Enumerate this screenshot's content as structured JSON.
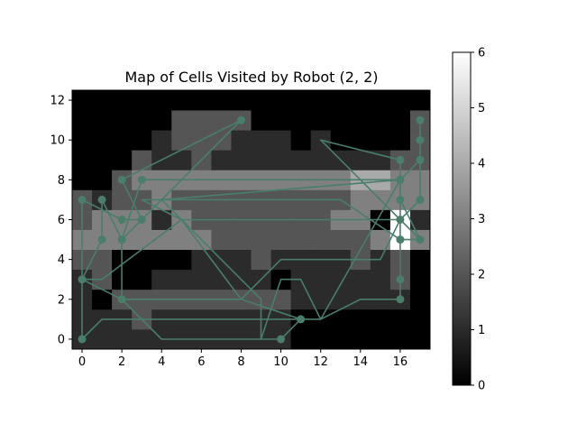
{
  "chart_data": {
    "type": "heatmap",
    "title": "Map of Cells Visited by Robot (2, 2)",
    "xlabel": "",
    "ylabel": "",
    "grid": false,
    "colormap": "gray",
    "xlim": [
      -0.5,
      17.5
    ],
    "ylim": [
      -0.5,
      12.5
    ],
    "x_ticks": [
      0,
      2,
      4,
      6,
      8,
      10,
      12,
      14,
      16
    ],
    "y_ticks": [
      0,
      2,
      4,
      6,
      8,
      10,
      12
    ],
    "colorbar": {
      "min": 0,
      "max": 6,
      "ticks": [
        0,
        1,
        2,
        3,
        4,
        5,
        6
      ]
    },
    "grid_values": [
      [
        1,
        1,
        1,
        1,
        1,
        1,
        1,
        1,
        1,
        1,
        1,
        0,
        0,
        0,
        0,
        0,
        0,
        0
      ],
      [
        1,
        1,
        1,
        2,
        1,
        1,
        1,
        1,
        1,
        1,
        1,
        0,
        0,
        0,
        0,
        0,
        0,
        0
      ],
      [
        1,
        0,
        2,
        2,
        2,
        2,
        2,
        2,
        2,
        2,
        2,
        1,
        1,
        1,
        1,
        1,
        1,
        0
      ],
      [
        1,
        2,
        0,
        0,
        1,
        1,
        1,
        1,
        1,
        1,
        0,
        1,
        1,
        1,
        1,
        1,
        2,
        0
      ],
      [
        2,
        2,
        0,
        0,
        0,
        0,
        1,
        1,
        1,
        2,
        1,
        1,
        1,
        1,
        2,
        1,
        2,
        0
      ],
      [
        3,
        3,
        3,
        3,
        3,
        3,
        3,
        2,
        2,
        2,
        2,
        2,
        2,
        2,
        2,
        3,
        6,
        3
      ],
      [
        2,
        3,
        3,
        3,
        1,
        3,
        2,
        2,
        2,
        2,
        2,
        2,
        2,
        3,
        3,
        0,
        6,
        1
      ],
      [
        2,
        1,
        2,
        2,
        3,
        2,
        2,
        2,
        2,
        2,
        2,
        2,
        2,
        2,
        3,
        3,
        3,
        3
      ],
      [
        0,
        0,
        2,
        3,
        3,
        3,
        3,
        3,
        3,
        3,
        3,
        3,
        3,
        3,
        4,
        4,
        3,
        3
      ],
      [
        0,
        0,
        0,
        2,
        1,
        1,
        2,
        1,
        1,
        1,
        1,
        1,
        1,
        1,
        1,
        1,
        2,
        2
      ],
      [
        0,
        0,
        0,
        0,
        1,
        2,
        2,
        2,
        1,
        1,
        1,
        0,
        1,
        0,
        0,
        0,
        0,
        2
      ],
      [
        0,
        0,
        0,
        0,
        0,
        2,
        2,
        2,
        2,
        0,
        0,
        0,
        0,
        0,
        0,
        0,
        0,
        2
      ],
      [
        0,
        0,
        0,
        0,
        0,
        0,
        0,
        0,
        0,
        0,
        0,
        0,
        0,
        0,
        0,
        0,
        0,
        0
      ]
    ],
    "path_color": "#4a7d6a",
    "path": [
      [
        0,
        0
      ],
      [
        0,
        3
      ],
      [
        1,
        5
      ],
      [
        1,
        7
      ],
      [
        2,
        5
      ],
      [
        3,
        6
      ],
      [
        2,
        8
      ],
      [
        8,
        11
      ],
      [
        3,
        6
      ],
      [
        2,
        6
      ],
      [
        0,
        7
      ],
      [
        0,
        3
      ],
      [
        2,
        2
      ],
      [
        8,
        2
      ],
      [
        11,
        1
      ],
      [
        10,
        0
      ],
      [
        4,
        0
      ],
      [
        2,
        2
      ],
      [
        2,
        5
      ],
      [
        3,
        8
      ],
      [
        16,
        8
      ],
      [
        17,
        9
      ],
      [
        17,
        11
      ],
      [
        17,
        10
      ],
      [
        17,
        9
      ],
      [
        17,
        7
      ],
      [
        16,
        6
      ],
      [
        16,
        7
      ],
      [
        16,
        2
      ],
      [
        14,
        2
      ],
      [
        12,
        1
      ],
      [
        9,
        1
      ],
      [
        1,
        1
      ],
      [
        0,
        0
      ],
      [
        0,
        3
      ],
      [
        1,
        3
      ],
      [
        5,
        6
      ],
      [
        16,
        6
      ],
      [
        16,
        5
      ],
      [
        17,
        5
      ],
      [
        16,
        6
      ],
      [
        16,
        9
      ],
      [
        12,
        10
      ],
      [
        16,
        6
      ],
      [
        16,
        3
      ],
      [
        16,
        8
      ],
      [
        4,
        7
      ],
      [
        9,
        2
      ],
      [
        9,
        1
      ],
      [
        9,
        0
      ],
      [
        10,
        3
      ],
      [
        11,
        3
      ],
      [
        12,
        1
      ],
      [
        16,
        8
      ],
      [
        16,
        5
      ],
      [
        13,
        7
      ],
      [
        3,
        7
      ],
      [
        5,
        6
      ],
      [
        8,
        2
      ],
      [
        10,
        4
      ],
      [
        15,
        4
      ],
      [
        16,
        6
      ],
      [
        16,
        7
      ],
      [
        17,
        5
      ]
    ],
    "markers": [
      [
        0,
        0
      ],
      [
        0,
        3
      ],
      [
        0,
        7
      ],
      [
        1,
        5
      ],
      [
        1,
        7
      ],
      [
        2,
        2
      ],
      [
        2,
        5
      ],
      [
        2,
        6
      ],
      [
        2,
        8
      ],
      [
        3,
        6
      ],
      [
        3,
        8
      ],
      [
        8,
        11
      ],
      [
        10,
        0
      ],
      [
        11,
        1
      ],
      [
        16,
        2
      ],
      [
        16,
        3
      ],
      [
        16,
        5
      ],
      [
        16,
        6
      ],
      [
        16,
        7
      ],
      [
        16,
        8
      ],
      [
        16,
        9
      ],
      [
        17,
        5
      ],
      [
        17,
        7
      ],
      [
        17,
        9
      ],
      [
        17,
        10
      ],
      [
        17,
        11
      ]
    ]
  }
}
